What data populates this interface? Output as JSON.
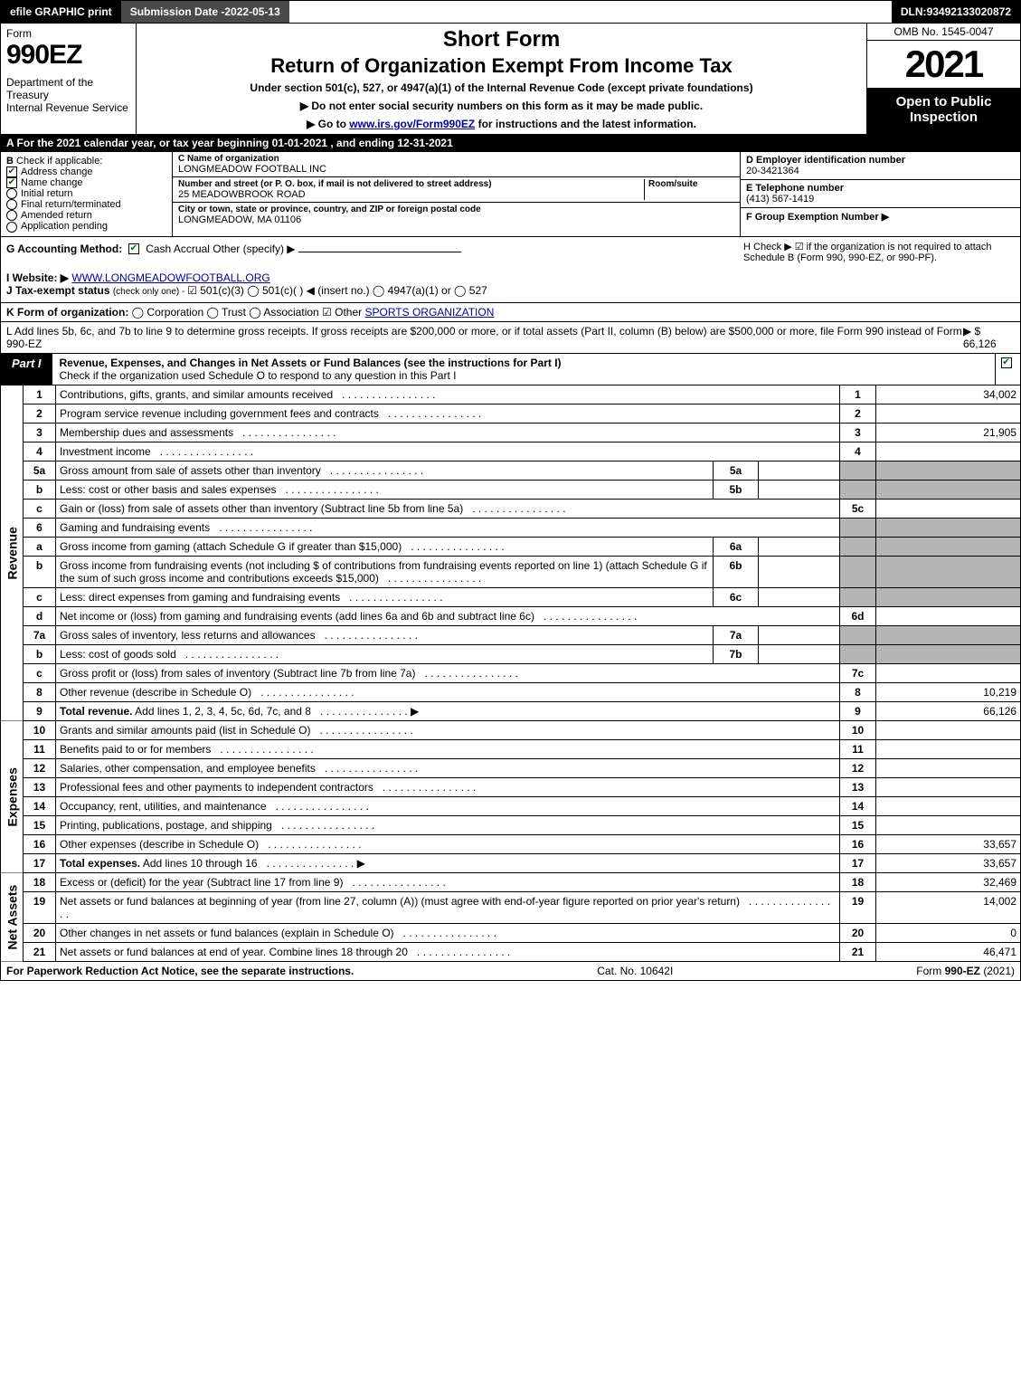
{
  "topbar": {
    "efile": "efile GRAPHIC print",
    "subdate_label": "Submission Date - ",
    "subdate": "2022-05-13",
    "dln_label": "DLN: ",
    "dln": "93492133020872"
  },
  "header": {
    "form_label": "Form",
    "form_num": "990EZ",
    "dept": "Department of the Treasury\nInternal Revenue Service",
    "title1": "Short Form",
    "title2": "Return of Organization Exempt From Income Tax",
    "subtitle": "Under section 501(c), 527, or 4947(a)(1) of the Internal Revenue Code (except private foundations)",
    "instr1": "▶ Do not enter social security numbers on this form as it may be made public.",
    "instr2_pre": "▶ Go to ",
    "instr2_link": "www.irs.gov/Form990EZ",
    "instr2_post": " for instructions and the latest information.",
    "omb": "OMB No. 1545-0047",
    "year": "2021",
    "open": "Open to Public Inspection"
  },
  "rowA": "A  For the 2021 calendar year, or tax year beginning 01-01-2021 , and ending 12-31-2021",
  "B": {
    "label": "B",
    "sub": "Check if applicable:",
    "items": [
      {
        "label": "Address change",
        "checked": true,
        "round": false
      },
      {
        "label": "Name change",
        "checked": true,
        "round": false
      },
      {
        "label": "Initial return",
        "checked": false,
        "round": true
      },
      {
        "label": "Final return/terminated",
        "checked": false,
        "round": true
      },
      {
        "label": "Amended return",
        "checked": false,
        "round": true
      },
      {
        "label": "Application pending",
        "checked": false,
        "round": true
      }
    ]
  },
  "C": {
    "name_label": "C Name of organization",
    "name": "LONGMEADOW FOOTBALL INC",
    "street_label": "Number and street (or P. O. box, if mail is not delivered to street address)",
    "street": "25 MEADOWBROOK ROAD",
    "room_label": "Room/suite",
    "city_label": "City or town, state or province, country, and ZIP or foreign postal code",
    "city": "LONGMEADOW, MA  01106"
  },
  "D": {
    "label": "D Employer identification number",
    "val": "20-3421364"
  },
  "E": {
    "label": "E Telephone number",
    "val": "(413) 567-1419"
  },
  "F": {
    "label": "F Group Exemption Number  ▶",
    "val": ""
  },
  "G": {
    "label": "G Accounting Method:",
    "opts": "Cash    Accrual    Other (specify) ▶",
    "cash_checked": true
  },
  "H": {
    "text": "H  Check ▶  ☑  if the organization is not required to attach Schedule B (Form 990, 990-EZ, or 990-PF)."
  },
  "I": {
    "label": "I Website: ▶",
    "val": "WWW.LONGMEADOWFOOTBALL.ORG"
  },
  "J": {
    "label": "J Tax-exempt status",
    "sub": "(check only one) - ",
    "text": "☑ 501(c)(3)  ◯ 501(c)(  ) ◀ (insert no.)  ◯ 4947(a)(1) or  ◯ 527"
  },
  "K": {
    "label": "K Form of organization:",
    "text": "◯ Corporation   ◯ Trust   ◯ Association   ☑ Other ",
    "other": "SPORTS ORGANIZATION"
  },
  "L": {
    "text": "L Add lines 5b, 6c, and 7b to line 9 to determine gross receipts. If gross receipts are $200,000 or more, or if total assets (Part II, column (B) below) are $500,000 or more, file Form 990 instead of Form 990-EZ",
    "arrow_val": "▶ $ 66,126"
  },
  "part1": {
    "tag": "Part I",
    "desc": "Revenue, Expenses, and Changes in Net Assets or Fund Balances (see the instructions for Part I)",
    "subdesc": "Check if the organization used Schedule O to respond to any question in this Part I",
    "checked": true
  },
  "sideLabels": {
    "rev": "Revenue",
    "exp": "Expenses",
    "na": "Net Assets"
  },
  "revenue": [
    {
      "n": "1",
      "d": "Contributions, gifts, grants, and similar amounts received",
      "num": "1",
      "val": "34,002"
    },
    {
      "n": "2",
      "d": "Program service revenue including government fees and contracts",
      "num": "2",
      "val": ""
    },
    {
      "n": "3",
      "d": "Membership dues and assessments",
      "num": "3",
      "val": "21,905"
    },
    {
      "n": "4",
      "d": "Investment income",
      "num": "4",
      "val": ""
    },
    {
      "n": "5a",
      "d": "Gross amount from sale of assets other than inventory",
      "sub": "5a",
      "subval": ""
    },
    {
      "n": "b",
      "d": "Less: cost or other basis and sales expenses",
      "sub": "5b",
      "subval": ""
    },
    {
      "n": "c",
      "d": "Gain or (loss) from sale of assets other than inventory (Subtract line 5b from line 5a)",
      "num": "5c",
      "val": ""
    },
    {
      "n": "6",
      "d": "Gaming and fundraising events"
    },
    {
      "n": "a",
      "d": "Gross income from gaming (attach Schedule G if greater than $15,000)",
      "sub": "6a",
      "subval": ""
    },
    {
      "n": "b",
      "d": "Gross income from fundraising events (not including $                      of contributions from fundraising events reported on line 1) (attach Schedule G if the sum of such gross income and contributions exceeds $15,000)",
      "sub": "6b",
      "subval": ""
    },
    {
      "n": "c",
      "d": "Less: direct expenses from gaming and fundraising events",
      "sub": "6c",
      "subval": ""
    },
    {
      "n": "d",
      "d": "Net income or (loss) from gaming and fundraising events (add lines 6a and 6b and subtract line 6c)",
      "num": "6d",
      "val": ""
    },
    {
      "n": "7a",
      "d": "Gross sales of inventory, less returns and allowances",
      "sub": "7a",
      "subval": ""
    },
    {
      "n": "b",
      "d": "Less: cost of goods sold",
      "sub": "7b",
      "subval": ""
    },
    {
      "n": "c",
      "d": "Gross profit or (loss) from sales of inventory (Subtract line 7b from line 7a)",
      "num": "7c",
      "val": ""
    },
    {
      "n": "8",
      "d": "Other revenue (describe in Schedule O)",
      "num": "8",
      "val": "10,219"
    },
    {
      "n": "9",
      "d": "Total revenue. Add lines 1, 2, 3, 4, 5c, 6d, 7c, and 8",
      "num": "9",
      "val": "66,126",
      "bold": true,
      "arrow": true
    }
  ],
  "expenses": [
    {
      "n": "10",
      "d": "Grants and similar amounts paid (list in Schedule O)",
      "num": "10",
      "val": ""
    },
    {
      "n": "11",
      "d": "Benefits paid to or for members",
      "num": "11",
      "val": ""
    },
    {
      "n": "12",
      "d": "Salaries, other compensation, and employee benefits",
      "num": "12",
      "val": ""
    },
    {
      "n": "13",
      "d": "Professional fees and other payments to independent contractors",
      "num": "13",
      "val": ""
    },
    {
      "n": "14",
      "d": "Occupancy, rent, utilities, and maintenance",
      "num": "14",
      "val": ""
    },
    {
      "n": "15",
      "d": "Printing, publications, postage, and shipping",
      "num": "15",
      "val": ""
    },
    {
      "n": "16",
      "d": "Other expenses (describe in Schedule O)",
      "num": "16",
      "val": "33,657"
    },
    {
      "n": "17",
      "d": "Total expenses. Add lines 10 through 16",
      "num": "17",
      "val": "33,657",
      "bold": true,
      "arrow": true
    }
  ],
  "netassets": [
    {
      "n": "18",
      "d": "Excess or (deficit) for the year (Subtract line 17 from line 9)",
      "num": "18",
      "val": "32,469"
    },
    {
      "n": "19",
      "d": "Net assets or fund balances at beginning of year (from line 27, column (A)) (must agree with end-of-year figure reported on prior year's return)",
      "num": "19",
      "val": "14,002"
    },
    {
      "n": "20",
      "d": "Other changes in net assets or fund balances (explain in Schedule O)",
      "num": "20",
      "val": "0"
    },
    {
      "n": "21",
      "d": "Net assets or fund balances at end of year. Combine lines 18 through 20",
      "num": "21",
      "val": "46,471"
    }
  ],
  "footer": {
    "left": "For Paperwork Reduction Act Notice, see the separate instructions.",
    "mid": "Cat. No. 10642I",
    "right_pre": "Form ",
    "right_form": "990-EZ",
    "right_post": " (2021)"
  },
  "colors": {
    "black": "#000000",
    "grey_bg": "#b5b5b5",
    "dark_grey": "#4a4a4a",
    "link": "#0000a0",
    "check_green": "#006400"
  }
}
